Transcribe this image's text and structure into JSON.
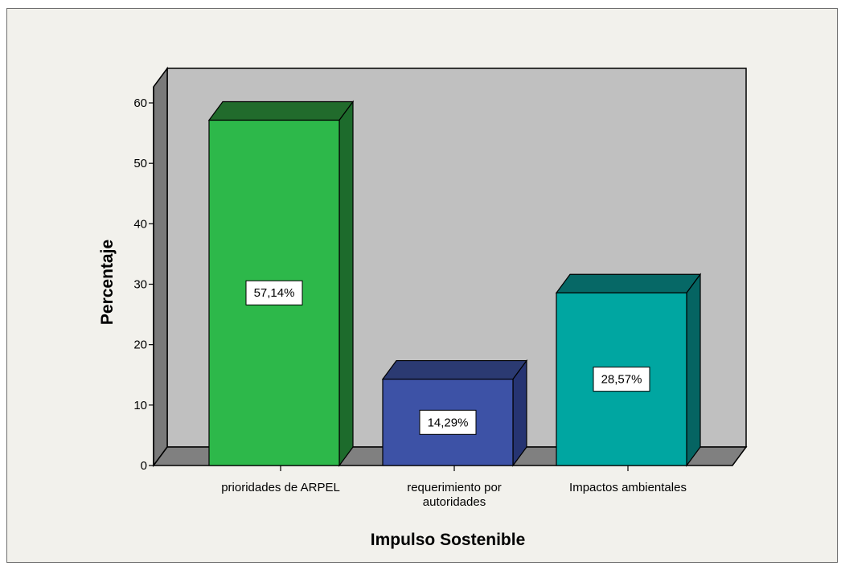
{
  "chart_data": {
    "type": "bar",
    "title": "",
    "xlabel": "Impulso Sostenible",
    "ylabel": "Percentaje",
    "ylim": [
      0,
      60
    ],
    "yticks": [
      0,
      10,
      20,
      30,
      40,
      50,
      60
    ],
    "grid": false,
    "legend": "none",
    "categories": [
      [
        "prioridades de ARPEL"
      ],
      [
        "requerimiento por",
        "autoridades"
      ],
      [
        "Impactos ambientales"
      ]
    ],
    "values": [
      57.14,
      14.29,
      28.57
    ],
    "data_labels": [
      "57,14%",
      "14,29%",
      "28,57%"
    ],
    "colors": [
      {
        "front": "#2db84a",
        "top": "#216b2c",
        "side": "#1d6b2c"
      },
      {
        "front": "#3d52a6",
        "top": "#2b3a72",
        "side": "#263472"
      },
      {
        "front": "#00a6a1",
        "top": "#066866",
        "side": "#056462"
      }
    ],
    "background": {
      "plot": "#c0c0c0",
      "floor": "#808080",
      "wall_side": "#7a7a7a",
      "frame": "#f2f1ec"
    }
  }
}
